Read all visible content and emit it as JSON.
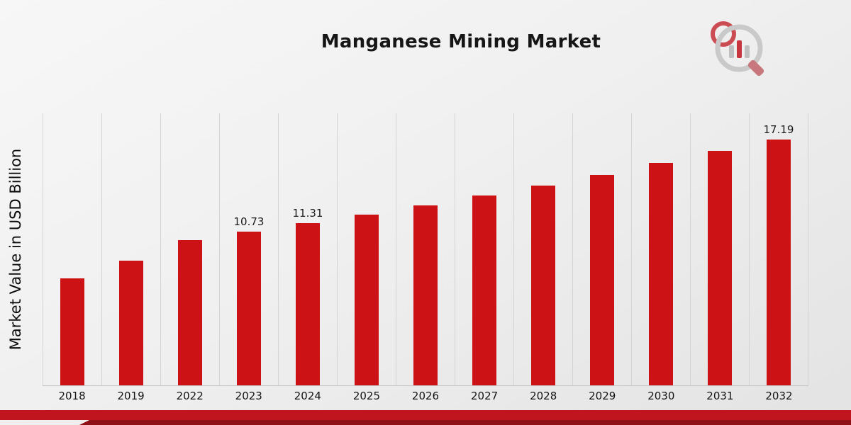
{
  "header": {
    "title": "Manganese Mining Market",
    "logo_name": "market-research-logo"
  },
  "chart_data": {
    "type": "bar",
    "title": "Manganese Mining Market",
    "xlabel": "",
    "ylabel": "Market Value in USD Billion",
    "categories": [
      "2018",
      "2019",
      "2022",
      "2023",
      "2024",
      "2025",
      "2026",
      "2027",
      "2028",
      "2029",
      "2030",
      "2031",
      "2032"
    ],
    "values": [
      7.49,
      8.72,
      10.15,
      10.73,
      11.31,
      11.92,
      12.57,
      13.25,
      13.97,
      14.72,
      15.52,
      16.36,
      17.19
    ],
    "data_labels": [
      "",
      "",
      "",
      "10.73",
      "11.31",
      "",
      "",
      "",
      "",
      "",
      "",
      "",
      "17.19"
    ],
    "ylim": [
      0,
      19
    ],
    "grid": "vertical",
    "legend": "none",
    "bar_color": "#cd1216"
  },
  "colors": {
    "background_top": "#f7f7f7",
    "background_bottom": "#e3e3e3",
    "gridline": "#d4d4d4",
    "axis_line": "#c6c6c6",
    "footer_bar": "#c0151f",
    "footer_bar_dark": "#8e1118",
    "logo_gray": "#c9c9c9",
    "logo_red": "#c0151f"
  }
}
